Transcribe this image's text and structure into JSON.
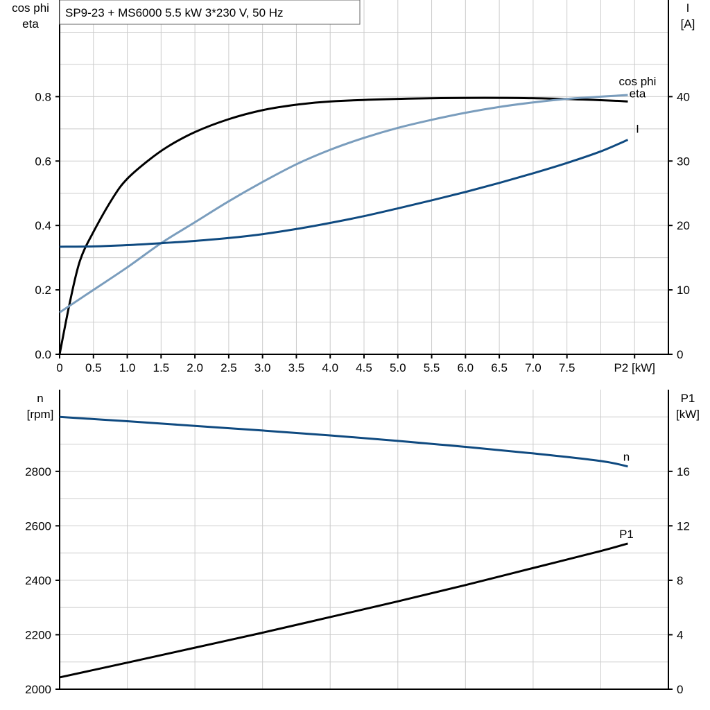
{
  "title": "SP9-23 + MS6000   5.5 kW   3*230 V, 50 Hz",
  "colors": {
    "eta": "#000000",
    "cos_phi": "#7a9dbd",
    "I": "#0f4a80",
    "n": "#0f4a80",
    "P1": "#000000",
    "grid": "#cccccc"
  },
  "chart_data": [
    {
      "type": "line",
      "title": "SP9-23 + MS6000   5.5 kW   3*230 V, 50 Hz",
      "xlabel": "P2 [kW]",
      "xlim": [
        0,
        9
      ],
      "xticks": [
        "0",
        "0.5",
        "1.0",
        "1.5",
        "2.0",
        "2.5",
        "3.0",
        "3.5",
        "4.0",
        "4.5",
        "5.0",
        "5.5",
        "6.0",
        "6.5",
        "7.0",
        "7.5"
      ],
      "ylabel_left": [
        "cos phi",
        "eta"
      ],
      "ylim_left": [
        0,
        1.1
      ],
      "yticks_left": [
        "0.0",
        "0.2",
        "0.4",
        "0.6",
        "0.8"
      ],
      "ylabel_right": [
        "I",
        "[A]"
      ],
      "ylim_right": [
        0,
        55
      ],
      "yticks_right": [
        "0",
        "10",
        "20",
        "30",
        "40"
      ],
      "grid": true,
      "series": [
        {
          "name": "eta",
          "axis": "left",
          "x": [
            0,
            0.15,
            0.3,
            0.5,
            0.8,
            1.0,
            1.3,
            1.6,
            2.0,
            2.5,
            3.0,
            3.5,
            4.0,
            5.0,
            6.0,
            7.0,
            8.0,
            8.4
          ],
          "y": [
            0,
            0.16,
            0.29,
            0.38,
            0.49,
            0.545,
            0.6,
            0.645,
            0.69,
            0.73,
            0.758,
            0.775,
            0.785,
            0.793,
            0.796,
            0.795,
            0.789,
            0.785
          ]
        },
        {
          "name": "cos phi",
          "axis": "left",
          "x": [
            0,
            0.5,
            1.0,
            1.5,
            2.0,
            2.5,
            3.0,
            3.5,
            4.0,
            4.5,
            5.0,
            5.5,
            6.0,
            6.5,
            7.0,
            7.5,
            8.0,
            8.4
          ],
          "y": [
            0.13,
            0.2,
            0.27,
            0.345,
            0.41,
            0.475,
            0.535,
            0.59,
            0.635,
            0.672,
            0.703,
            0.728,
            0.75,
            0.768,
            0.782,
            0.793,
            0.8,
            0.805
          ]
        },
        {
          "name": "I",
          "axis": "right",
          "x": [
            0,
            0.5,
            1.0,
            1.5,
            2.0,
            2.5,
            3.0,
            3.5,
            4.0,
            4.5,
            5.0,
            5.5,
            6.0,
            6.5,
            7.0,
            7.5,
            8.0,
            8.4
          ],
          "y": [
            16.7,
            16.75,
            16.95,
            17.25,
            17.6,
            18.05,
            18.65,
            19.45,
            20.4,
            21.45,
            22.65,
            23.9,
            25.2,
            26.6,
            28.1,
            29.7,
            31.5,
            33.3
          ]
        }
      ]
    },
    {
      "type": "line",
      "xlim": [
        0,
        9
      ],
      "ylabel_left": [
        "n",
        "[rpm]"
      ],
      "ylim_left": [
        2000,
        3100
      ],
      "yticks_left": [
        "2000",
        "2200",
        "2400",
        "2600",
        "2800"
      ],
      "ylabel_right": [
        "P1",
        "[kW]"
      ],
      "ylim_right": [
        0,
        22
      ],
      "yticks_right": [
        "0",
        "4",
        "8",
        "12",
        "16"
      ],
      "grid": true,
      "series": [
        {
          "name": "n",
          "axis": "left",
          "x": [
            0,
            1,
            2,
            3,
            4,
            5,
            6,
            7,
            8,
            8.4
          ],
          "y": [
            3000,
            2984,
            2967,
            2950,
            2932,
            2912,
            2890,
            2866,
            2838,
            2818
          ]
        },
        {
          "name": "P1",
          "axis": "right",
          "x": [
            0,
            1,
            2,
            3,
            4,
            5,
            6,
            7,
            8,
            8.4
          ],
          "y": [
            0.87,
            1.95,
            3.05,
            4.15,
            5.3,
            6.45,
            7.65,
            8.9,
            10.15,
            10.7
          ]
        }
      ]
    }
  ]
}
